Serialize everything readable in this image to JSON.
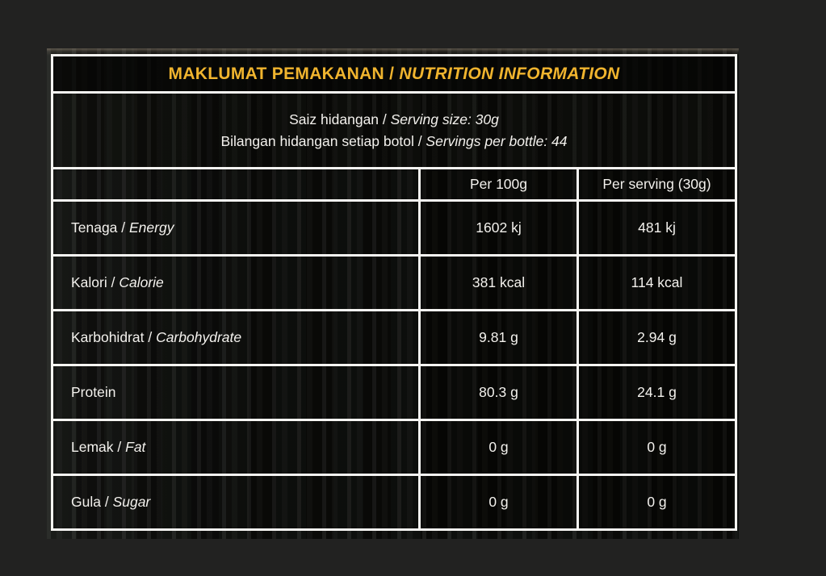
{
  "colors": {
    "page_bg": "#222221",
    "panel_bg": "#0c0c0a",
    "grid_border": "#f6f5f2",
    "title_accent": "#f0b42e",
    "body_text": "#f3f1ed"
  },
  "title": {
    "malay": "MAKLUMAT PEMAKANAN / ",
    "english": "NUTRITION INFORMATION"
  },
  "serving_info": {
    "line1": {
      "malay": "Saiz hidangan / ",
      "english": "Serving size: 30g"
    },
    "line2": {
      "malay": "Bilangan hidangan setiap botol / ",
      "english": "Servings per bottle: 44"
    }
  },
  "table": {
    "columns": [
      "",
      "Per 100g",
      "Per serving (30g)"
    ],
    "rows": [
      {
        "malay": "Tenaga / ",
        "english": "Energy",
        "per_100g": "1602 kj",
        "per_serving": "481 kj"
      },
      {
        "malay": "Kalori / ",
        "english": "Calorie",
        "per_100g": "381 kcal",
        "per_serving": "114 kcal"
      },
      {
        "malay": "Karbohidrat / ",
        "english": "Carbohydrate",
        "per_100g": "9.81 g",
        "per_serving": "2.94 g"
      },
      {
        "malay": "Protein",
        "english": "",
        "per_100g": "80.3 g",
        "per_serving": "24.1 g"
      },
      {
        "malay": "Lemak / ",
        "english": "Fat",
        "per_100g": "0 g",
        "per_serving": "0 g"
      },
      {
        "malay": "Gula / ",
        "english": "Sugar",
        "per_100g": "0 g",
        "per_serving": "0 g"
      }
    ]
  }
}
